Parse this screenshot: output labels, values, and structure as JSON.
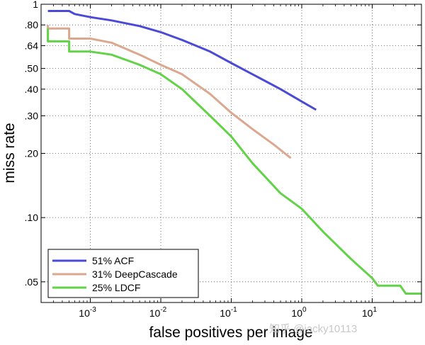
{
  "chart_data": {
    "type": "line",
    "xlabel": "false positives per image",
    "ylabel": "miss rate",
    "x_scale": "log",
    "y_scale": "log",
    "xlim": [
      0.0002,
      50
    ],
    "ylim": [
      0.04,
      1
    ],
    "grid": true,
    "legend_position": "lower-left",
    "xticks": [
      {
        "value": 0.001,
        "base": "10",
        "exp": "-3"
      },
      {
        "value": 0.01,
        "base": "10",
        "exp": "-2"
      },
      {
        "value": 0.1,
        "base": "10",
        "exp": "-1"
      },
      {
        "value": 1,
        "base": "10",
        "exp": "0"
      },
      {
        "value": 10,
        "base": "10",
        "exp": "1"
      }
    ],
    "yticks": [
      {
        "value": 1,
        "label": "1"
      },
      {
        "value": 0.8,
        "label": ".80"
      },
      {
        "value": 0.64,
        "label": ".64"
      },
      {
        "value": 0.5,
        "label": ".50"
      },
      {
        "value": 0.4,
        "label": ".40"
      },
      {
        "value": 0.3,
        "label": ".30"
      },
      {
        "value": 0.2,
        "label": ".20"
      },
      {
        "value": 0.1,
        "label": ".10"
      },
      {
        "value": 0.05,
        "label": ".05"
      }
    ],
    "series": [
      {
        "name": "51% ACF",
        "label": "51% ACF",
        "color": "#4a4ad6",
        "points": [
          [
            0.00025,
            0.93
          ],
          [
            0.0005,
            0.93
          ],
          [
            0.0006,
            0.9
          ],
          [
            0.001,
            0.87
          ],
          [
            0.002,
            0.84
          ],
          [
            0.005,
            0.79
          ],
          [
            0.01,
            0.74
          ],
          [
            0.02,
            0.68
          ],
          [
            0.05,
            0.6
          ],
          [
            0.1,
            0.53
          ],
          [
            0.2,
            0.47
          ],
          [
            0.5,
            0.4
          ],
          [
            1.0,
            0.35
          ],
          [
            1.6,
            0.32
          ]
        ]
      },
      {
        "name": "31% DeepCascade",
        "label": "31% DeepCascade",
        "color": "#dba88f",
        "points": [
          [
            0.00025,
            0.8
          ],
          [
            0.00025,
            0.77
          ],
          [
            0.0005,
            0.77
          ],
          [
            0.0005,
            0.69
          ],
          [
            0.001,
            0.69
          ],
          [
            0.002,
            0.66
          ],
          [
            0.005,
            0.58
          ],
          [
            0.01,
            0.52
          ],
          [
            0.02,
            0.47
          ],
          [
            0.05,
            0.38
          ],
          [
            0.1,
            0.31
          ],
          [
            0.2,
            0.26
          ],
          [
            0.4,
            0.22
          ],
          [
            0.7,
            0.19
          ]
        ]
      },
      {
        "name": "25% LDCF",
        "label": "25% LDCF",
        "color": "#62d348",
        "points": [
          [
            0.00025,
            0.77
          ],
          [
            0.00025,
            0.67
          ],
          [
            0.0005,
            0.67
          ],
          [
            0.0005,
            0.6
          ],
          [
            0.001,
            0.6
          ],
          [
            0.002,
            0.58
          ],
          [
            0.005,
            0.52
          ],
          [
            0.01,
            0.47
          ],
          [
            0.02,
            0.4
          ],
          [
            0.05,
            0.3
          ],
          [
            0.1,
            0.24
          ],
          [
            0.2,
            0.18
          ],
          [
            0.5,
            0.13
          ],
          [
            1.0,
            0.11
          ],
          [
            2.0,
            0.086
          ],
          [
            5.0,
            0.064
          ],
          [
            10,
            0.052
          ],
          [
            12,
            0.048
          ],
          [
            25,
            0.048
          ],
          [
            30,
            0.044
          ],
          [
            50,
            0.044
          ]
        ]
      }
    ]
  },
  "watermark": "知乎 @jacky10113"
}
